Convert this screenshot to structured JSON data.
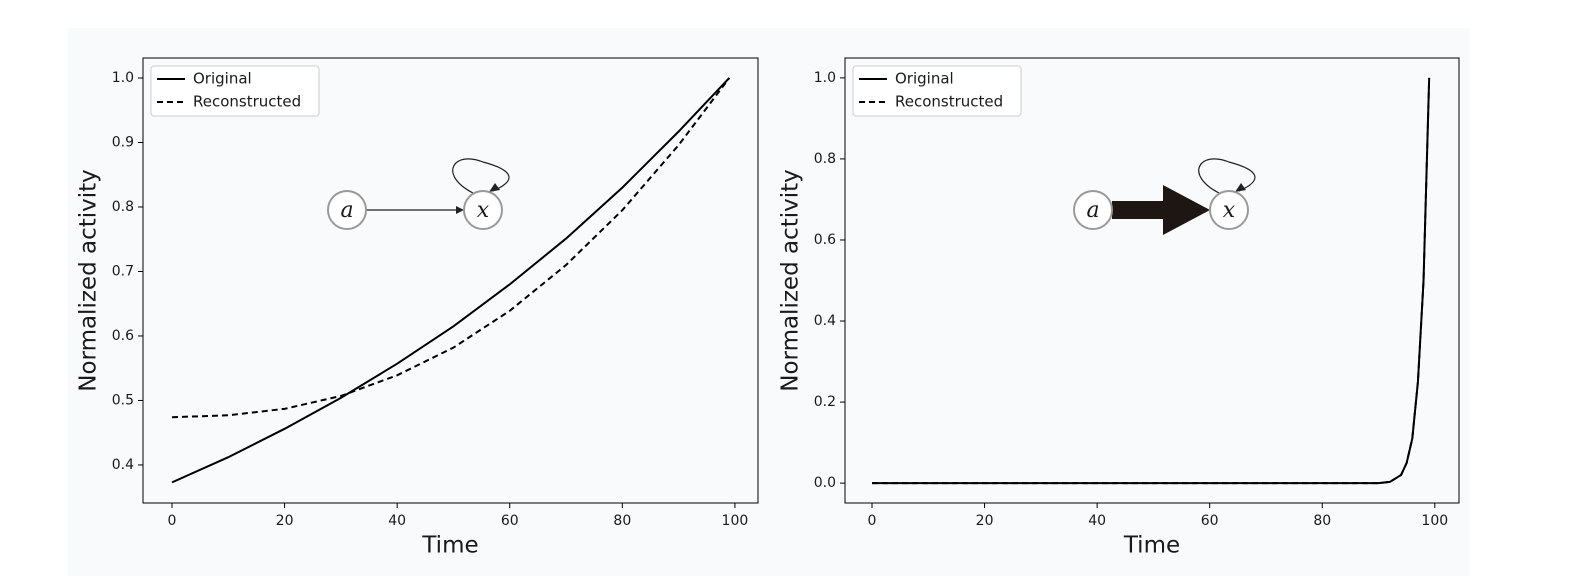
{
  "chart_data": [
    {
      "type": "line",
      "xlabel": "Time",
      "ylabel": "Normalized activity",
      "x": [
        0,
        10,
        20,
        30,
        40,
        50,
        60,
        70,
        80,
        90,
        99
      ],
      "series": [
        {
          "name": "Original",
          "color": "#000000",
          "dash": "solid",
          "values": [
            0.373,
            0.412,
            0.456,
            0.504,
            0.557,
            0.615,
            0.68,
            0.751,
            0.83,
            0.917,
            1.0
          ]
        },
        {
          "name": "Reconstructed",
          "color": "#000000",
          "dash": "dashed",
          "values": [
            0.474,
            0.477,
            0.487,
            0.507,
            0.539,
            0.582,
            0.639,
            0.71,
            0.795,
            0.896,
            1.0
          ]
        }
      ],
      "xlim": [
        -5.15,
        104.1
      ],
      "ylim": [
        0.341,
        1.031
      ],
      "xticks": [
        0,
        20,
        40,
        60,
        80,
        100
      ],
      "yticks": [
        0.4,
        0.5,
        0.6,
        0.7,
        0.8,
        0.9,
        {
          "value": 1,
          "label": "1.0"
        }
      ],
      "legend": "upper left",
      "nodes": [
        "a",
        "x"
      ],
      "arrow": "thin"
    },
    {
      "type": "line",
      "xlabel": "Time",
      "ylabel": "Normalized activity",
      "x": [
        0,
        10,
        20,
        30,
        40,
        50,
        60,
        70,
        80,
        90,
        92,
        94,
        95,
        96,
        97,
        98,
        99
      ],
      "series": [
        {
          "name": "Original",
          "color": "#000000",
          "dash": "solid",
          "values": [
            0,
            0,
            0,
            0,
            0,
            0,
            0,
            0,
            0,
            0,
            0.003,
            0.02,
            0.05,
            0.11,
            0.25,
            0.5,
            1.0
          ]
        },
        {
          "name": "Reconstructed",
          "color": "#000000",
          "dash": "dashed",
          "values": [
            0,
            0,
            0,
            0,
            0,
            0,
            0,
            0,
            0,
            0,
            0.003,
            0.02,
            0.05,
            0.11,
            0.25,
            0.5,
            1.0
          ]
        }
      ],
      "xlim": [
        -4.8,
        104.3
      ],
      "ylim": [
        -0.049,
        1.049
      ],
      "xticks": [
        0,
        20,
        40,
        60,
        80,
        100
      ],
      "yticks": [
        {
          "value": 0,
          "label": "0.0"
        },
        0.2,
        0.4,
        0.6,
        0.8,
        {
          "value": 1,
          "label": "1.0"
        }
      ],
      "legend": "upper left",
      "nodes": [
        "a",
        "x"
      ],
      "arrow": "thick"
    }
  ]
}
